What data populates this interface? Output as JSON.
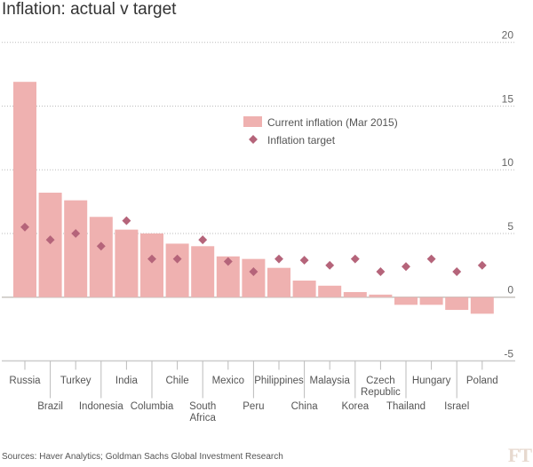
{
  "title": "Inflation: actual v target",
  "source": "Sources: Haver Analytics; Goldman Sachs Global Investment Research",
  "logo": "FT",
  "colors": {
    "bar": "#efb1b0",
    "marker": "#b5647a",
    "grid": "#bbbbbb",
    "axis": "#cccccc"
  },
  "chart_data": {
    "type": "bar",
    "title": "Inflation: actual v target",
    "xlabel": "",
    "ylabel": "",
    "ylim": [
      -5,
      20
    ],
    "yticks": [
      20,
      15,
      10,
      5,
      0,
      -5
    ],
    "grid": true,
    "legend_position": "center-right",
    "categories": [
      "Russia",
      "Brazil",
      "Turkey",
      "Indonesia",
      "India",
      "Columbia",
      "Chile",
      "South Africa",
      "Mexico",
      "Peru",
      "Philippines",
      "China",
      "Malaysia",
      "Korea",
      "Czech Republic",
      "Thailand",
      "Hungary",
      "Israel",
      "Poland"
    ],
    "series": [
      {
        "name": "Current inflation (Mar 2015)",
        "type": "bar",
        "values": [
          16.9,
          8.2,
          7.6,
          6.3,
          5.3,
          5.0,
          4.2,
          4.0,
          3.2,
          3.0,
          2.3,
          1.3,
          0.9,
          0.4,
          0.2,
          -0.6,
          -0.6,
          -1.0,
          -1.3
        ]
      },
      {
        "name": "Inflation target",
        "type": "scatter",
        "values": [
          5.5,
          4.5,
          5.0,
          4.0,
          6.0,
          3.0,
          3.0,
          4.5,
          2.8,
          2.0,
          3.0,
          2.9,
          2.5,
          3.0,
          2.0,
          2.4,
          3.0,
          2.0,
          2.5
        ]
      }
    ]
  }
}
